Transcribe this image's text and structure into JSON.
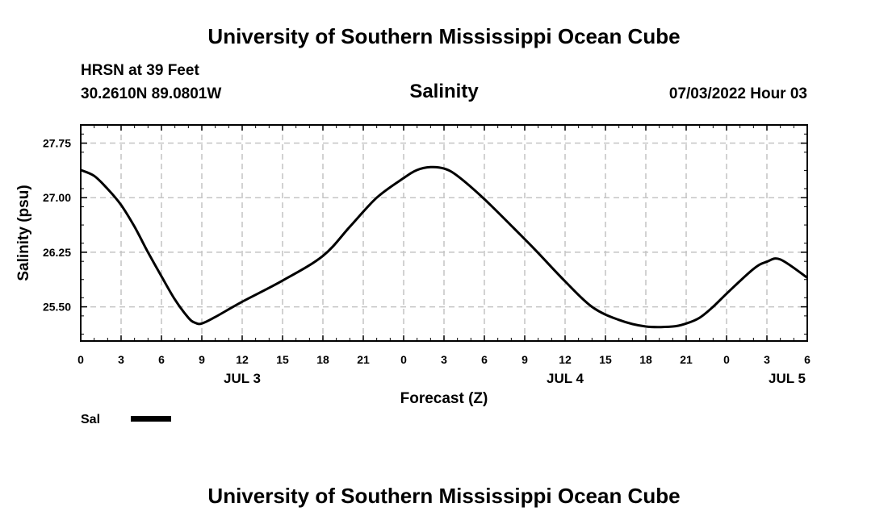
{
  "header": {
    "title": "University of Southern Mississippi Ocean Cube",
    "station": "HRSN at 39 Feet",
    "coords": "30.2610N  89.0801W",
    "datetime": "07/03/2022 Hour 03"
  },
  "footer": {
    "title": "University of Southern Mississippi Ocean Cube"
  },
  "legend": {
    "label": "Sal",
    "color": "#000000"
  },
  "chart_data": {
    "type": "line",
    "title": "Salinity",
    "xlabel": "Forecast (Z)",
    "ylabel": "Salinity (psu)",
    "xlim": [
      0,
      54
    ],
    "ylim": [
      25.03,
      28.0
    ],
    "x_unit": "hours from 07/03 00Z",
    "xticks": [
      0,
      3,
      6,
      9,
      12,
      15,
      18,
      21,
      24,
      27,
      30,
      33,
      36,
      39,
      42,
      45,
      48,
      51,
      54
    ],
    "xtick_labels": [
      "0",
      "3",
      "6",
      "9",
      "12",
      "15",
      "18",
      "21",
      "0",
      "3",
      "6",
      "9",
      "12",
      "15",
      "18",
      "21",
      "0",
      "3",
      "6"
    ],
    "yticks": [
      25.5,
      26.25,
      27.0,
      27.75
    ],
    "ytick_labels": [
      "25.50",
      "26.25",
      "27.00",
      "27.75"
    ],
    "day_labels": [
      {
        "x": 12,
        "label": "JUL 3"
      },
      {
        "x": 36,
        "label": "JUL 4"
      },
      {
        "x": 52.5,
        "label": "JUL 5"
      }
    ],
    "grid": true,
    "series": [
      {
        "name": "Sal",
        "x": [
          0,
          1,
          2,
          3,
          4,
          5,
          6,
          7,
          8,
          8.5,
          9,
          10,
          12,
          15,
          18,
          20,
          22,
          24,
          25,
          26,
          27,
          28,
          30,
          33,
          34,
          36,
          38,
          40,
          42,
          44,
          45,
          46,
          47,
          48,
          50,
          51,
          52,
          54
        ],
        "values": [
          27.38,
          27.3,
          27.12,
          26.9,
          26.6,
          26.25,
          25.92,
          25.6,
          25.35,
          25.28,
          25.27,
          25.36,
          25.57,
          25.86,
          26.2,
          26.6,
          27.0,
          27.27,
          27.38,
          27.42,
          27.4,
          27.3,
          26.98,
          26.43,
          26.24,
          25.85,
          25.5,
          25.32,
          25.23,
          25.23,
          25.27,
          25.35,
          25.5,
          25.68,
          26.02,
          26.12,
          26.15,
          25.9
        ]
      }
    ]
  }
}
